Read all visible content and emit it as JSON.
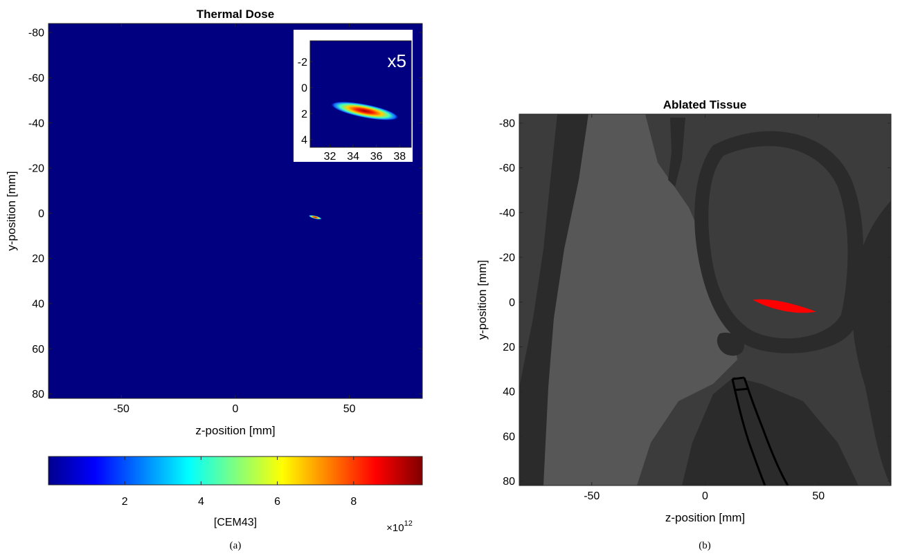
{
  "colors": {
    "dose_background": "#000080",
    "tissue_dark": "#2b2b2b",
    "tissue_mid": "#3c3c3c",
    "tissue_light": "#575757",
    "ablation": "#ff0000",
    "outline": "#000000"
  },
  "chart_data": [
    {
      "type": "heatmap",
      "panel_label": "(a)",
      "title": "Thermal Dose",
      "xlabel": "z-position [mm]",
      "ylabel": "y-position [mm]",
      "xlim": [
        -82,
        82
      ],
      "ylim": [
        82,
        -84
      ],
      "y_reversed": true,
      "xticks": [
        -50,
        0,
        50
      ],
      "yticks": [
        -80,
        -60,
        -40,
        -20,
        0,
        20,
        40,
        60,
        80
      ],
      "colormap": "jet",
      "hotspot": {
        "z": 35,
        "y": 1.8,
        "length_z": 6,
        "peak": 9800000000000.0
      },
      "inset": {
        "label": "x5",
        "xlim": [
          30.3,
          39.0
        ],
        "ylim": [
          4.6,
          -3.6
        ],
        "xticks": [
          32,
          34,
          36,
          38
        ],
        "yticks": [
          -2,
          0,
          2,
          4
        ]
      },
      "colorbar": {
        "label": "[CEM43]",
        "range": [
          0,
          9.8
        ],
        "ticks": [
          2,
          4,
          6,
          8
        ],
        "exponent_base": "×10",
        "exponent_power": "12"
      }
    },
    {
      "type": "heatmap",
      "panel_label": "(b)",
      "title": "Ablated Tissue",
      "xlabel": "z-position [mm]",
      "ylabel": "y-position [mm]",
      "xlim": [
        -82,
        82
      ],
      "ylim": [
        82,
        -84
      ],
      "y_reversed": true,
      "xticks": [
        -50,
        0,
        50
      ],
      "yticks": [
        -80,
        -60,
        -40,
        -20,
        0,
        20,
        40,
        60,
        80
      ],
      "ablation_region": {
        "z_start": 21,
        "z_end": 49,
        "y_center": 1.5
      }
    }
  ]
}
